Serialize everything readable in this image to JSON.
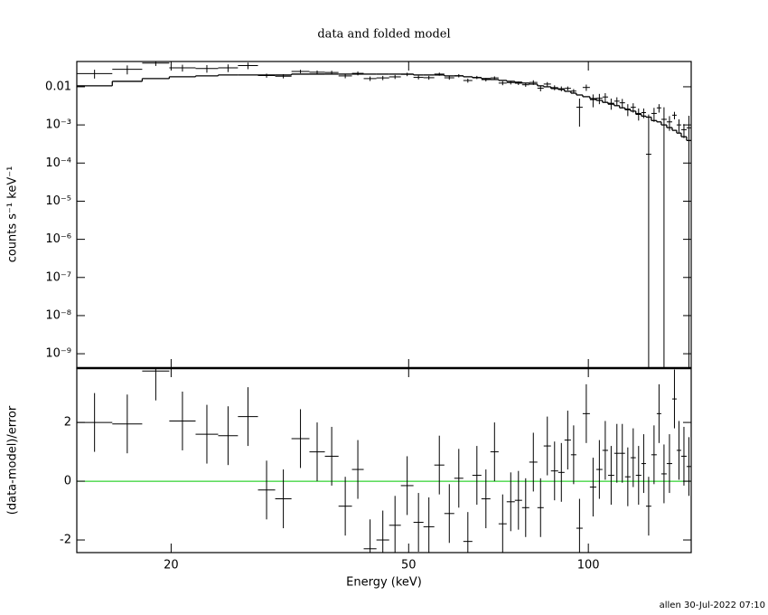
{
  "chart_data": [
    {
      "type": "spectrum",
      "title": "data and folded model",
      "ylabel": "counts s⁻¹ keV⁻¹",
      "log_x": true,
      "log_y": true,
      "color": "#000000",
      "xlim": [
        13.9,
        148.7
      ],
      "xticks": [
        20,
        50,
        100
      ],
      "ylim": [
        4.2e-10,
        0.046
      ],
      "yticks": [
        {
          "value": 1e-09,
          "label": "10⁻⁹"
        },
        {
          "value": 1e-08,
          "label": "10⁻⁸"
        },
        {
          "value": 1e-07,
          "label": "10⁻⁷"
        },
        {
          "value": 1e-06,
          "label": "10⁻⁶"
        },
        {
          "value": 1e-05,
          "label": "10⁻⁵"
        },
        {
          "value": 0.0001,
          "label": "10⁻⁴"
        },
        {
          "value": 0.001,
          "label": "10⁻³"
        },
        0.01
      ],
      "bin_edges": [
        13.9,
        15.94,
        17.89,
        19.86,
        21.98,
        23.98,
        25.88,
        27.96,
        29.88,
        31.82,
        34.1,
        36.19,
        38.15,
        40.18,
        42.04,
        44.16,
        46.38,
        48.52,
        50.94,
        52.94,
        55.2,
        57.38,
        59.62,
        61.74,
        63.93,
        66.2,
        68.54,
        70.74,
        72.98,
        75.3,
        77.44,
        79.62,
        82.16,
        84.18,
        86.56,
        89.02,
        91.22,
        93.5,
        95.48,
        97.84,
        100.6,
        103.1,
        105.6,
        107.9,
        110.5,
        112.8,
        115.2,
        117.7,
        120.1,
        122.7,
        124.9,
        127.5,
        130.2,
        132.5,
        135.3,
        138.2,
        140.6,
        143.1,
        146.1,
        148.7
      ],
      "model": [
        0.0106,
        0.0139,
        0.0164,
        0.0183,
        0.0193,
        0.0204,
        0.0204,
        0.0204,
        0.0204,
        0.0215,
        0.0215,
        0.0215,
        0.0215,
        0.0215,
        0.0215,
        0.0215,
        0.0215,
        0.0215,
        0.0204,
        0.0204,
        0.0204,
        0.0193,
        0.0193,
        0.0183,
        0.0173,
        0.0164,
        0.0155,
        0.0147,
        0.0139,
        0.0132,
        0.0125,
        0.0118,
        0.0106,
        0.01,
        0.009,
        0.0085,
        0.0076,
        0.0068,
        0.0061,
        0.0055,
        0.0049,
        0.0044,
        0.0039,
        0.0035,
        0.0032,
        0.0028,
        0.0025,
        0.0023,
        0.0019,
        0.0017,
        0.0016,
        0.0013,
        0.0012,
        0.001,
        0.00085,
        0.00072,
        0.00061,
        0.00049,
        0.00039
      ],
      "data": [
        0.0222,
        0.0287,
        0.0419,
        0.0314,
        0.0302,
        0.0314,
        0.036,
        0.0197,
        0.019,
        0.0253,
        0.0241,
        0.0237,
        0.0193,
        0.0225,
        0.0164,
        0.0171,
        0.0182,
        0.0212,
        0.0176,
        0.0173,
        0.0215,
        0.0172,
        0.0195,
        0.0146,
        0.0176,
        0.0154,
        0.0171,
        0.0125,
        0.0129,
        0.0124,
        0.0113,
        0.013,
        0.0092,
        0.0118,
        0.0095,
        0.0089,
        0.0091,
        0.0077,
        0.0029,
        0.0096,
        0.0046,
        0.005,
        0.0054,
        0.0037,
        0.0042,
        0.0038,
        0.0026,
        0.0029,
        0.002,
        0.0021,
        0.00017,
        0.002,
        0.0028,
        0.0014,
        0.0012,
        0.0018,
        0.001,
        0.00075,
        0.00084
      ],
      "errors": [
        0.0058,
        0.0076,
        0.0068,
        0.0064,
        0.0068,
        0.0071,
        0.0071,
        0.0024,
        0.0024,
        0.0026,
        0.0026,
        0.0026,
        0.0026,
        0.0026,
        0.0022,
        0.0022,
        0.0022,
        0.0022,
        0.002,
        0.002,
        0.002,
        0.0019,
        0.0019,
        0.0018,
        0.0017,
        0.0016,
        0.0016,
        0.0015,
        0.0014,
        0.0013,
        0.0013,
        0.0018,
        0.0016,
        0.0015,
        0.0014,
        0.0013,
        0.0011,
        0.001,
        0.002,
        0.0018,
        0.0017,
        0.0015,
        0.0014,
        0.0012,
        0.0011,
        0.001,
        0.0009,
        0.0008,
        0.0007,
        0.0006,
        0.0017,
        0.0008,
        0.0007,
        0.0015,
        0.0005,
        0.0004,
        0.0004,
        0.0003,
        0.0009
      ]
    },
    {
      "type": "residuals",
      "xlabel": "Energy (keV)",
      "ylabel": "(data-model)/error",
      "log_x": true,
      "color": "#000000",
      "xlim": [
        13.9,
        148.7
      ],
      "xticks": [
        20,
        50,
        100
      ],
      "ylim": [
        -2.43,
        3.85
      ],
      "yticks": [
        -2,
        0,
        2
      ],
      "reference_line": 0,
      "reference_color": "#00c800",
      "values": [
        2.0,
        1.95,
        3.75,
        2.05,
        1.6,
        1.55,
        2.2,
        -0.3,
        -0.6,
        1.45,
        1.0,
        0.85,
        -0.85,
        0.4,
        -2.3,
        -2.0,
        -1.5,
        -0.15,
        -1.4,
        -1.55,
        0.55,
        -1.1,
        0.1,
        -2.05,
        0.2,
        -0.6,
        1.0,
        -1.45,
        -0.7,
        -0.65,
        -0.9,
        0.65,
        -0.9,
        1.2,
        0.35,
        0.3,
        1.4,
        0.9,
        -1.6,
        2.3,
        -0.2,
        0.4,
        1.05,
        0.2,
        0.95,
        0.95,
        0.15,
        0.8,
        0.2,
        0.6,
        -0.85,
        0.9,
        2.3,
        0.25,
        0.6,
        2.8,
        1.05,
        0.85,
        0.5
      ],
      "error": 1
    }
  ],
  "footer": "allen 30-Jul-2022 07:10"
}
